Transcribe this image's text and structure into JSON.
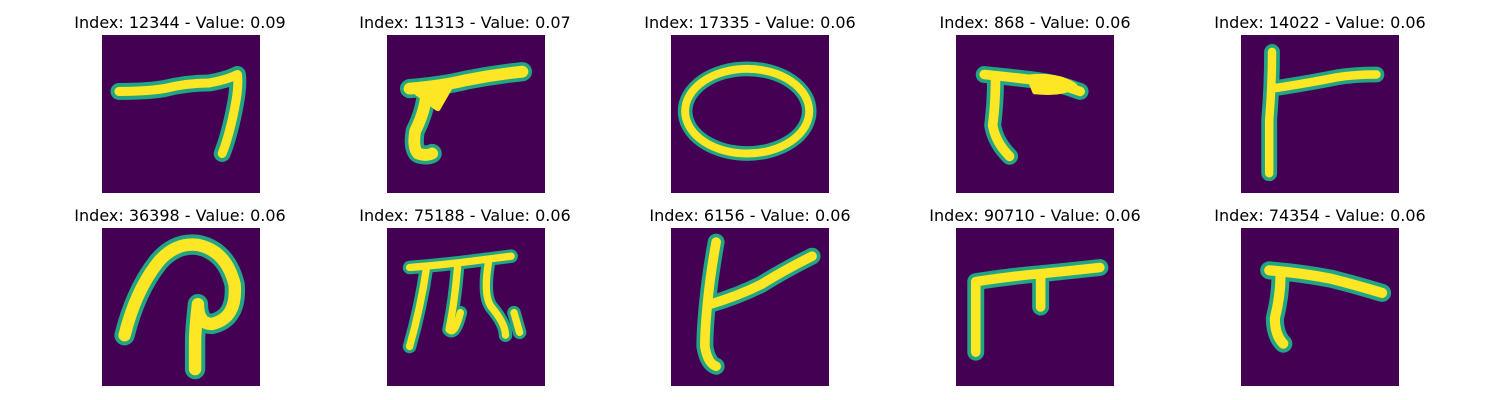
{
  "figure": {
    "background_color": "#ffffff",
    "image_background_color": "#440154",
    "stroke_color": "#fde725",
    "stroke_edge_color": "#21a585",
    "samples": [
      {
        "title": "Index: 12344 - Value: 0.09",
        "digit_icon": "handwritten-stroke-7"
      },
      {
        "title": "Index: 11313 - Value: 0.07",
        "digit_icon": "handwritten-stroke-7"
      },
      {
        "title": "Index: 17335 - Value: 0.06",
        "digit_icon": "handwritten-stroke-0"
      },
      {
        "title": "Index: 868 - Value: 0.06",
        "digit_icon": "handwritten-stroke-7"
      },
      {
        "title": "Index: 14022 - Value: 0.06",
        "digit_icon": "handwritten-stroke-7"
      },
      {
        "title": "Index: 36398 - Value: 0.06",
        "digit_icon": "handwritten-stroke-loop"
      },
      {
        "title": "Index: 75188 - Value: 0.06",
        "digit_icon": "handwritten-stroke-m"
      },
      {
        "title": "Index: 6156 - Value: 0.06",
        "digit_icon": "handwritten-stroke-7"
      },
      {
        "title": "Index: 90710 - Value: 0.06",
        "digit_icon": "handwritten-stroke-t"
      },
      {
        "title": "Index: 74354 - Value: 0.06",
        "digit_icon": "handwritten-stroke-7"
      }
    ]
  }
}
